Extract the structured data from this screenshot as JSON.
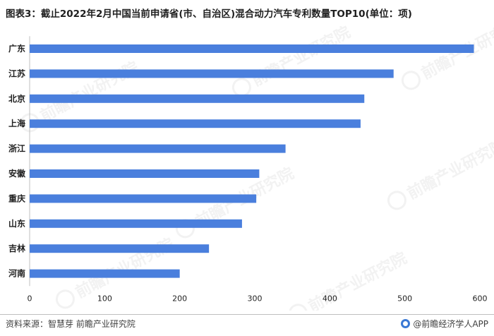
{
  "title": "图表3：截止2022年2月中国当前申请省(市、自治区)混合动力汽车专利数量TOP10(单位：项)",
  "source": "资料来源：智慧芽 前瞻产业研究院",
  "brand": "@前瞻经济学人APP",
  "watermark_text": "前瞻产业研究院",
  "colors": {
    "bar": "#4a7fdd",
    "axis": "#bfbfbf",
    "text": "#1f1f1f"
  },
  "chart_data": {
    "type": "bar",
    "orientation": "horizontal",
    "title": "图表3：截止2022年2月中国当前申请省(市、自治区)混合动力汽车专利数量TOP10(单位：项)",
    "categories": [
      "广东",
      "江苏",
      "北京",
      "上海",
      "浙江",
      "安徽",
      "重庆",
      "山东",
      "吉林",
      "河南"
    ],
    "values": [
      592,
      485,
      446,
      441,
      341,
      306,
      302,
      283,
      239,
      200
    ],
    "xlim": [
      0,
      600
    ],
    "xticks": [
      "0",
      "100",
      "200",
      "300",
      "400",
      "500",
      "600"
    ],
    "xlabel": "",
    "ylabel": "",
    "grid": false,
    "legend": "none"
  }
}
